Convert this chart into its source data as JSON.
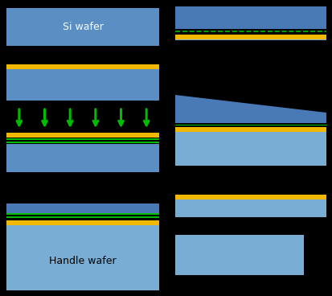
{
  "bg_color": "#000000",
  "si_light": "#7aadd4",
  "si_mid": "#5b8fc4",
  "si_dark": "#4a7ab5",
  "oxide_color": "#f0b800",
  "green_color": "#00bb00",
  "arrow_color": "#00bb00",
  "text_color": "#ffffff",
  "text_color2": "#000000",
  "fig_w": 4.14,
  "fig_h": 3.68,
  "dpi": 100
}
